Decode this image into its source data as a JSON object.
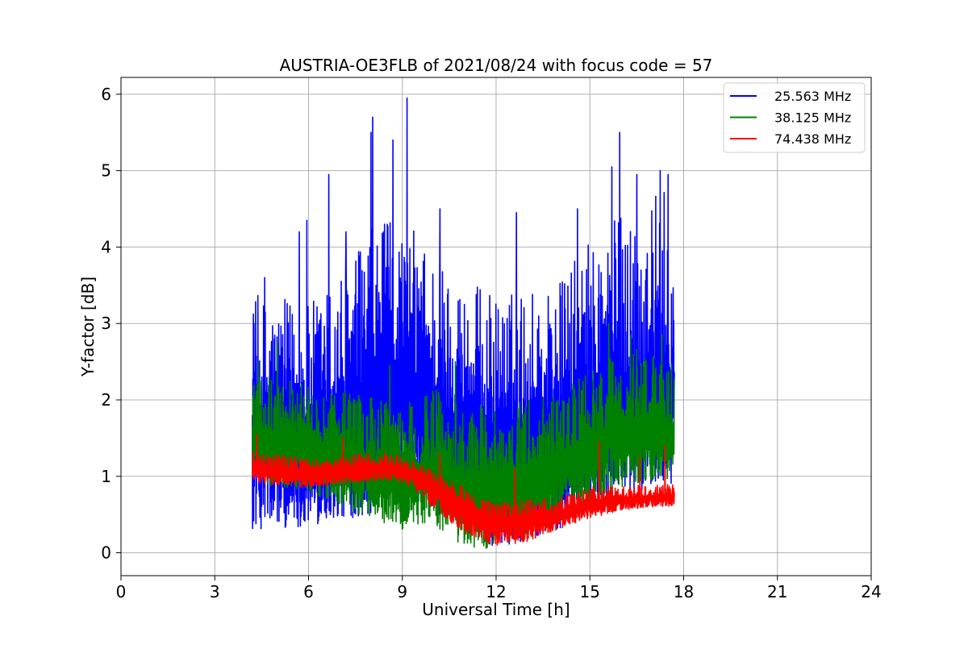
{
  "chart_data": {
    "type": "line",
    "title": "AUSTRIA-OE3FLB of 2021/08/24 with focus code = 57",
    "xlabel": "Universal Time [h]",
    "ylabel": "Y-factor [dB]",
    "xlim": [
      0,
      24
    ],
    "ylim": [
      -0.3,
      6.22
    ],
    "xticks": [
      0,
      3,
      6,
      9,
      12,
      15,
      18,
      21,
      24
    ],
    "yticks": [
      0,
      1,
      2,
      3,
      4,
      5,
      6
    ],
    "grid": true,
    "legend_position": "top-right",
    "series": [
      {
        "name": "25.563 MHz",
        "color": "#0000ff",
        "x_range": [
          4.2,
          17.7
        ],
        "baseline_profile": [
          [
            4.2,
            1.6
          ],
          [
            6.0,
            1.45
          ],
          [
            8.0,
            1.9
          ],
          [
            9.0,
            2.1
          ],
          [
            10.5,
            1.6
          ],
          [
            12.0,
            1.4
          ],
          [
            14.0,
            1.6
          ],
          [
            15.5,
            2.0
          ],
          [
            17.0,
            2.1
          ],
          [
            17.7,
            2.0
          ]
        ],
        "spread_profile": [
          [
            4.2,
            1.0
          ],
          [
            6.0,
            1.0
          ],
          [
            8.0,
            1.3
          ],
          [
            9.0,
            1.3
          ],
          [
            10.5,
            1.2
          ],
          [
            12.0,
            1.1
          ],
          [
            14.0,
            1.1
          ],
          [
            15.5,
            1.3
          ],
          [
            17.0,
            1.5
          ],
          [
            17.7,
            1.5
          ]
        ],
        "min_profile": [
          [
            4.2,
            0.3
          ],
          [
            6.0,
            0.35
          ],
          [
            8.0,
            0.5
          ],
          [
            9.0,
            0.8
          ],
          [
            10.5,
            0.4
          ],
          [
            12.0,
            0.05
          ],
          [
            14.0,
            0.3
          ],
          [
            15.5,
            0.7
          ],
          [
            17.0,
            0.85
          ],
          [
            17.7,
            0.9
          ]
        ],
        "peaks": [
          [
            4.25,
            3.0
          ],
          [
            4.6,
            3.6
          ],
          [
            5.7,
            4.2
          ],
          [
            5.95,
            4.35
          ],
          [
            6.65,
            4.95
          ],
          [
            7.2,
            4.2
          ],
          [
            8.0,
            5.5
          ],
          [
            8.05,
            5.7
          ],
          [
            8.4,
            4.2
          ],
          [
            8.7,
            5.4
          ],
          [
            9.15,
            5.95
          ],
          [
            10.2,
            4.5
          ],
          [
            12.65,
            4.45
          ],
          [
            14.6,
            4.5
          ],
          [
            15.7,
            5.05
          ],
          [
            15.95,
            5.5
          ],
          [
            16.5,
            4.95
          ],
          [
            17.25,
            5.0
          ],
          [
            17.5,
            4.95
          ]
        ]
      },
      {
        "name": "38.125 MHz",
        "color": "#008000",
        "x_range": [
          4.2,
          17.7
        ],
        "baseline_profile": [
          [
            4.2,
            1.55
          ],
          [
            6.0,
            1.4
          ],
          [
            7.5,
            1.2
          ],
          [
            9.0,
            0.95
          ],
          [
            10.0,
            1.1
          ],
          [
            11.0,
            0.85
          ],
          [
            12.5,
            0.95
          ],
          [
            14.0,
            1.1
          ],
          [
            15.0,
            1.4
          ],
          [
            16.0,
            1.65
          ],
          [
            17.0,
            1.6
          ],
          [
            17.7,
            1.55
          ]
        ],
        "spread_profile": [
          [
            4.2,
            0.45
          ],
          [
            6.0,
            0.45
          ],
          [
            7.5,
            0.5
          ],
          [
            9.0,
            0.55
          ],
          [
            10.0,
            0.6
          ],
          [
            11.0,
            0.6
          ],
          [
            12.5,
            0.55
          ],
          [
            14.0,
            0.55
          ],
          [
            15.0,
            0.55
          ],
          [
            16.0,
            0.6
          ],
          [
            17.0,
            0.55
          ],
          [
            17.7,
            0.5
          ]
        ],
        "min_profile": [
          [
            4.2,
            0.9
          ],
          [
            6.0,
            0.8
          ],
          [
            7.5,
            0.5
          ],
          [
            9.0,
            0.3
          ],
          [
            10.0,
            0.35
          ],
          [
            11.0,
            0.02
          ],
          [
            12.5,
            0.1
          ],
          [
            14.0,
            0.4
          ],
          [
            15.0,
            0.6
          ],
          [
            16.0,
            0.85
          ],
          [
            17.0,
            0.95
          ],
          [
            17.7,
            0.95
          ]
        ],
        "peaks": [
          [
            4.4,
            2.5
          ],
          [
            5.0,
            2.75
          ],
          [
            8.6,
            2.45
          ],
          [
            10.7,
            2.5
          ],
          [
            15.6,
            3.0
          ],
          [
            16.3,
            2.85
          ],
          [
            17.3,
            2.85
          ]
        ]
      },
      {
        "name": "74.438 MHz",
        "color": "#ff0000",
        "x_range": [
          4.2,
          17.7
        ],
        "baseline_profile": [
          [
            4.2,
            1.12
          ],
          [
            6.0,
            1.05
          ],
          [
            7.0,
            1.1
          ],
          [
            8.5,
            1.13
          ],
          [
            9.3,
            1.05
          ],
          [
            10.0,
            0.85
          ],
          [
            11.0,
            0.6
          ],
          [
            12.0,
            0.4
          ],
          [
            13.0,
            0.45
          ],
          [
            14.0,
            0.5
          ],
          [
            15.0,
            0.65
          ],
          [
            16.0,
            0.7
          ],
          [
            17.0,
            0.72
          ],
          [
            17.7,
            0.72
          ]
        ],
        "spread_profile": [
          [
            4.2,
            0.12
          ],
          [
            6.0,
            0.1
          ],
          [
            7.0,
            0.1
          ],
          [
            8.5,
            0.1
          ],
          [
            9.3,
            0.1
          ],
          [
            10.0,
            0.12
          ],
          [
            11.0,
            0.14
          ],
          [
            12.0,
            0.14
          ],
          [
            13.0,
            0.14
          ],
          [
            14.0,
            0.12
          ],
          [
            15.0,
            0.12
          ],
          [
            16.0,
            0.1
          ],
          [
            17.0,
            0.1
          ],
          [
            17.7,
            0.1
          ]
        ],
        "min_profile": [
          [
            4.2,
            0.9
          ],
          [
            6.0,
            0.85
          ],
          [
            7.0,
            0.9
          ],
          [
            8.5,
            0.95
          ],
          [
            9.3,
            0.85
          ],
          [
            10.0,
            0.55
          ],
          [
            11.0,
            0.25
          ],
          [
            12.0,
            0.08
          ],
          [
            13.0,
            0.15
          ],
          [
            14.0,
            0.3
          ],
          [
            15.0,
            0.45
          ],
          [
            16.0,
            0.55
          ],
          [
            17.0,
            0.6
          ],
          [
            17.7,
            0.6
          ]
        ],
        "peaks": [
          [
            4.35,
            1.55
          ],
          [
            7.1,
            1.5
          ],
          [
            10.2,
            1.3
          ],
          [
            12.6,
            1.1
          ],
          [
            15.3,
            1.45
          ],
          [
            16.6,
            1.25
          ],
          [
            17.4,
            1.4
          ]
        ]
      }
    ]
  }
}
